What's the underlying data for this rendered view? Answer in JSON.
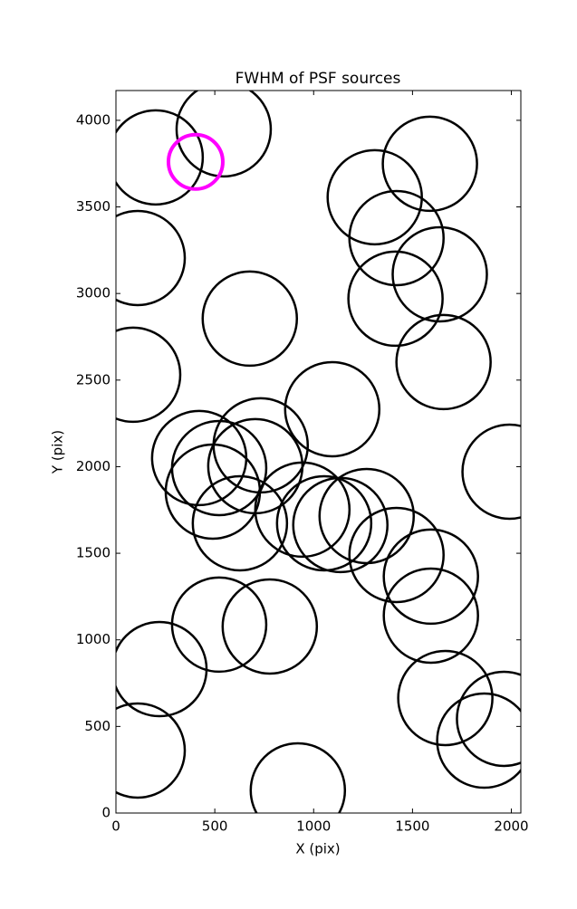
{
  "chart_data": {
    "type": "scatter",
    "title": "FWHM of PSF sources",
    "xlabel": "X (pix)",
    "ylabel": "Y (pix)",
    "xlim": [
      0,
      2048
    ],
    "ylim": [
      0,
      4172
    ],
    "xticks": [
      0,
      500,
      1000,
      1500,
      2000
    ],
    "yticks": [
      0,
      500,
      1000,
      1500,
      2000,
      2500,
      3000,
      3500,
      4000
    ],
    "series": [
      {
        "color": "#000000",
        "x": [
          201,
          545,
          110,
          677,
          87,
          1588,
          1309,
          1419,
          1638,
          1414,
          1657,
          1094,
          1991,
          421,
          522,
          732,
          705,
          490,
          627,
          943,
          1053,
          1135,
          1268,
          1419,
          1593,
          1593,
          522,
          778,
          220,
          1666,
          1963,
          1863,
          110,
          920
        ],
        "y": [
          3786,
          3948,
          3205,
          2855,
          2531,
          3749,
          3556,
          3320,
          3111,
          2970,
          2604,
          2332,
          1971,
          2050,
          1992,
          2123,
          2003,
          1856,
          1673,
          1752,
          1673,
          1663,
          1715,
          1490,
          1365,
          1140,
          1088,
          1077,
          831,
          664,
          544,
          418,
          361,
          131
        ]
      },
      {
        "color": "#ff00ff",
        "x": [
          403
        ],
        "y": [
          3760
        ]
      }
    ]
  }
}
